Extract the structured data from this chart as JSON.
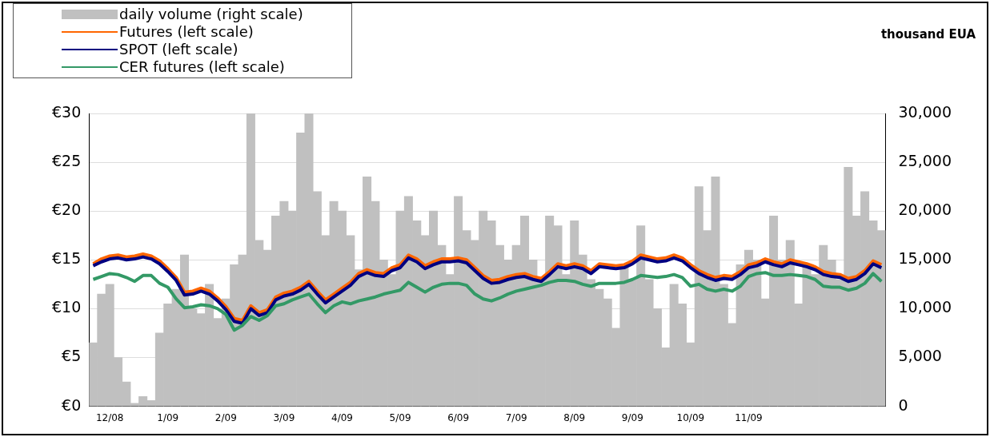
{
  "chart_data": {
    "type": "line",
    "annotations": [
      "thousand EUA"
    ],
    "categories": [
      null,
      null,
      "12/08",
      null,
      null,
      null,
      null,
      null,
      null,
      "1/09",
      null,
      null,
      null,
      null,
      null,
      null,
      "2/09",
      null,
      null,
      null,
      null,
      null,
      null,
      "3/09",
      null,
      null,
      null,
      null,
      null,
      null,
      "4/09",
      null,
      null,
      null,
      null,
      null,
      null,
      "5/09",
      null,
      null,
      null,
      null,
      null,
      null,
      "6/09",
      null,
      null,
      null,
      null,
      null,
      null,
      "7/09",
      null,
      null,
      null,
      null,
      null,
      null,
      "8/09",
      null,
      null,
      null,
      null,
      null,
      null,
      "9/09",
      null,
      null,
      null,
      null,
      null,
      null,
      "10/09",
      null,
      null,
      null,
      null,
      null,
      null,
      "11/09",
      null,
      null,
      null,
      null,
      null,
      null,
      null,
      null,
      null,
      null,
      null,
      null,
      null,
      null,
      null,
      null
    ],
    "series": [
      {
        "name": "daily volume (right scale)",
        "type": "bar",
        "axis": "y2",
        "color": "#c0c0c0",
        "values": [
          6500,
          11500,
          12500,
          5000,
          2500,
          300,
          1000,
          600,
          7500,
          10500,
          12000,
          15500,
          10000,
          9500,
          12500,
          9000,
          11000,
          14500,
          15500,
          30000,
          17000,
          16000,
          19500,
          21000,
          20000,
          28000,
          30000,
          22000,
          17500,
          21000,
          20000,
          17500,
          14000,
          23500,
          21000,
          15000,
          13500,
          20000,
          21500,
          19000,
          17500,
          20000,
          16500,
          13500,
          21500,
          18000,
          17000,
          20000,
          19000,
          16500,
          15000,
          16500,
          19500,
          15000,
          13000,
          19500,
          18500,
          13500,
          19000,
          15500,
          13000,
          12000,
          11000,
          8000,
          14500,
          13000,
          18500,
          13000,
          10000,
          6000,
          12500,
          10500,
          6500,
          22500,
          18000,
          23500,
          12500,
          8500,
          14500,
          16000,
          15000,
          11000,
          19500,
          15000,
          17000,
          10500,
          14500,
          13500,
          16500,
          15000,
          13000,
          24500,
          19500,
          22000,
          19000,
          18000
        ]
      },
      {
        "name": "Futures (left scale)",
        "axis": "y",
        "color": "#ff6600",
        "values": [
          14.6,
          15.1,
          15.4,
          15.5,
          15.3,
          15.4,
          15.6,
          15.4,
          14.9,
          14.1,
          13.2,
          11.7,
          11.8,
          12.1,
          11.8,
          11.1,
          10.2,
          9.0,
          8.8,
          10.3,
          9.6,
          9.9,
          11.2,
          11.6,
          11.8,
          12.2,
          12.8,
          11.8,
          10.9,
          11.5,
          12.1,
          12.7,
          13.6,
          14.0,
          13.7,
          13.6,
          14.2,
          14.5,
          15.5,
          15.1,
          14.4,
          14.8,
          15.1,
          15.1,
          15.2,
          15.0,
          14.2,
          13.4,
          12.9,
          13.0,
          13.3,
          13.5,
          13.6,
          13.3,
          13.1,
          13.8,
          14.6,
          14.4,
          14.6,
          14.4,
          13.9,
          14.6,
          14.5,
          14.4,
          14.5,
          14.9,
          15.5,
          15.3,
          15.1,
          15.2,
          15.5,
          15.2,
          14.5,
          13.9,
          13.5,
          13.2,
          13.4,
          13.3,
          13.8,
          14.5,
          14.7,
          15.1,
          14.8,
          14.6,
          15.0,
          14.8,
          14.6,
          14.3,
          13.8,
          13.6,
          13.5,
          13.1,
          13.3,
          13.9,
          14.9,
          14.5
        ]
      },
      {
        "name": "SPOT (left scale)",
        "axis": "y",
        "color": "#000080",
        "values": [
          14.4,
          14.8,
          15.1,
          15.2,
          15.0,
          15.1,
          15.3,
          15.1,
          14.6,
          13.8,
          12.9,
          11.4,
          11.5,
          11.8,
          11.5,
          10.8,
          9.9,
          8.7,
          8.5,
          10.0,
          9.3,
          9.6,
          10.9,
          11.3,
          11.5,
          11.9,
          12.5,
          11.5,
          10.6,
          11.2,
          11.8,
          12.4,
          13.3,
          13.7,
          13.4,
          13.3,
          13.9,
          14.2,
          15.2,
          14.8,
          14.1,
          14.5,
          14.8,
          14.8,
          14.9,
          14.7,
          13.9,
          13.1,
          12.6,
          12.7,
          13.0,
          13.2,
          13.3,
          13.0,
          12.8,
          13.5,
          14.3,
          14.1,
          14.3,
          14.1,
          13.6,
          14.3,
          14.2,
          14.1,
          14.2,
          14.6,
          15.2,
          15.0,
          14.8,
          14.9,
          15.2,
          14.9,
          14.2,
          13.6,
          13.2,
          12.9,
          13.1,
          13.0,
          13.5,
          14.2,
          14.4,
          14.8,
          14.5,
          14.3,
          14.7,
          14.5,
          14.3,
          14.0,
          13.5,
          13.3,
          13.2,
          12.8,
          13.0,
          13.6,
          14.6,
          14.2
        ]
      },
      {
        "name": "CER futures (left scale)",
        "axis": "y",
        "color": "#339966",
        "values": [
          13.0,
          13.3,
          13.6,
          13.5,
          13.2,
          12.8,
          13.4,
          13.4,
          12.6,
          12.2,
          11.0,
          10.1,
          10.2,
          10.4,
          10.3,
          10.0,
          9.4,
          7.8,
          8.3,
          9.2,
          8.8,
          9.3,
          10.3,
          10.5,
          10.9,
          11.2,
          11.5,
          10.5,
          9.6,
          10.3,
          10.7,
          10.5,
          10.8,
          11.0,
          11.2,
          11.5,
          11.7,
          11.9,
          12.7,
          12.2,
          11.7,
          12.2,
          12.5,
          12.6,
          12.6,
          12.4,
          11.5,
          11.0,
          10.8,
          11.1,
          11.5,
          11.8,
          12.0,
          12.2,
          12.4,
          12.7,
          12.9,
          12.9,
          12.8,
          12.5,
          12.3,
          12.6,
          12.6,
          12.6,
          12.7,
          13.0,
          13.4,
          13.3,
          13.2,
          13.3,
          13.5,
          13.2,
          12.3,
          12.5,
          12.0,
          11.8,
          12.0,
          11.8,
          12.3,
          13.3,
          13.6,
          13.7,
          13.4,
          13.4,
          13.5,
          13.4,
          13.3,
          13.0,
          12.3,
          12.2,
          12.2,
          11.9,
          12.1,
          12.6,
          13.6,
          12.8
        ]
      }
    ],
    "ylim": [
      0,
      30
    ],
    "yticks": [
      {
        "value": 0,
        "label": "€0"
      },
      {
        "value": 5,
        "label": "€5"
      },
      {
        "value": 10,
        "label": "€10"
      },
      {
        "value": 15,
        "label": "€15"
      },
      {
        "value": 20,
        "label": "€20"
      },
      {
        "value": 25,
        "label": "€25"
      },
      {
        "value": 30,
        "label": "€30"
      }
    ],
    "y2lim": [
      0,
      30000
    ],
    "y2ticks": [
      0,
      {
        "value": 5000,
        "label": "5,000"
      },
      {
        "value": 10000,
        "label": "10,000"
      },
      {
        "value": 15000,
        "label": "15,000"
      },
      {
        "value": 20000,
        "label": "20,000"
      },
      {
        "value": 25000,
        "label": "25,000"
      },
      {
        "value": 30000,
        "label": "30,000"
      }
    ],
    "grid": "y",
    "legend": "top left"
  }
}
